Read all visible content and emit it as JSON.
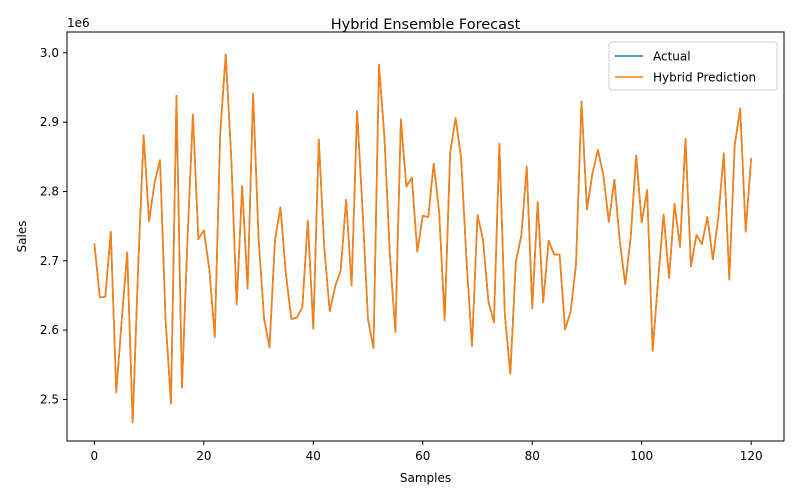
{
  "chart_data": {
    "type": "line",
    "title": "Hybrid Ensemble Forecast",
    "xlabel": "Samples",
    "ylabel": "Sales",
    "y_scale_label": "1e6",
    "xlim": [
      -5,
      126
    ],
    "ylim": [
      2440000,
      3030000
    ],
    "x_ticks": [
      0,
      20,
      40,
      60,
      80,
      100,
      120
    ],
    "x_tick_labels": [
      "0",
      "20",
      "40",
      "60",
      "80",
      "100",
      "120"
    ],
    "y_ticks": [
      2500000,
      2600000,
      2700000,
      2800000,
      2900000,
      3000000
    ],
    "y_tick_labels": [
      "2.5",
      "2.6",
      "2.7",
      "2.8",
      "2.9",
      "3.0"
    ],
    "grid": false,
    "legend_position": "top-right",
    "x": [
      0,
      1,
      2,
      3,
      4,
      5,
      6,
      7,
      8,
      9,
      10,
      11,
      12,
      13,
      14,
      15,
      16,
      17,
      18,
      19,
      20,
      21,
      22,
      23,
      24,
      25,
      26,
      27,
      28,
      29,
      30,
      31,
      32,
      33,
      34,
      35,
      36,
      37,
      38,
      39,
      40,
      41,
      42,
      43,
      44,
      45,
      46,
      47,
      48,
      49,
      50,
      51,
      52,
      53,
      54,
      55,
      56,
      57,
      58,
      59,
      60,
      61,
      62,
      63,
      64,
      65,
      66,
      67,
      68,
      69,
      70,
      71,
      72,
      73,
      74,
      75,
      76,
      77,
      78,
      79,
      80,
      81,
      82,
      83,
      84,
      85,
      86,
      87,
      88,
      89,
      90,
      91,
      92,
      93,
      94,
      95,
      96,
      97,
      98,
      99,
      100,
      101,
      102,
      103,
      104,
      105,
      106,
      107,
      108,
      109,
      110,
      111,
      112,
      113,
      114,
      115,
      116,
      117,
      118,
      119,
      120
    ],
    "series": [
      {
        "name": "Actual",
        "color": "#1f77b4",
        "values": [
          2725000,
          2647000,
          2648000,
          2742000,
          2510000,
          2615000,
          2712000,
          2467000,
          2690000,
          2881000,
          2757000,
          2813000,
          2845000,
          2616000,
          2494000,
          2938000,
          2517000,
          2728000,
          2911000,
          2731000,
          2744000,
          2688000,
          2590000,
          2885000,
          2998000,
          2850000,
          2637000,
          2808000,
          2660000,
          2941000,
          2733000,
          2617000,
          2575000,
          2730000,
          2777000,
          2680000,
          2616000,
          2618000,
          2633000,
          2758000,
          2602000,
          2875000,
          2720000,
          2627000,
          2663000,
          2686000,
          2788000,
          2664000,
          2916000,
          2773000,
          2615000,
          2574000,
          2983000,
          2878000,
          2707000,
          2597000,
          2904000,
          2807000,
          2820000,
          2713000,
          2765000,
          2763000,
          2840000,
          2770000,
          2614000,
          2855000,
          2906000,
          2848000,
          2700000,
          2577000,
          2766000,
          2731000,
          2641000,
          2611000,
          2869000,
          2621000,
          2537000,
          2698000,
          2736000,
          2836000,
          2631000,
          2785000,
          2640000,
          2729000,
          2709000,
          2709000,
          2601000,
          2626000,
          2695000,
          2930000,
          2774000,
          2826000,
          2860000,
          2823000,
          2756000,
          2817000,
          2728000,
          2666000,
          2735000,
          2852000,
          2755000,
          2802000,
          2570000,
          2672000,
          2767000,
          2675000,
          2782000,
          2720000,
          2876000,
          2692000,
          2737000,
          2724000,
          2763000,
          2702000,
          2763000,
          2855000,
          2673000,
          2867000,
          2920000,
          2742000,
          2848000
        ]
      },
      {
        "name": "Hybrid Prediction",
        "color": "#ff7f0e",
        "values": [
          2725000,
          2647000,
          2648000,
          2742000,
          2510000,
          2615000,
          2712000,
          2467000,
          2690000,
          2881000,
          2757000,
          2813000,
          2845000,
          2616000,
          2494000,
          2938000,
          2517000,
          2728000,
          2911000,
          2731000,
          2744000,
          2688000,
          2590000,
          2885000,
          2998000,
          2850000,
          2637000,
          2808000,
          2660000,
          2941000,
          2733000,
          2617000,
          2575000,
          2730000,
          2777000,
          2680000,
          2616000,
          2618000,
          2633000,
          2758000,
          2602000,
          2875000,
          2720000,
          2627000,
          2663000,
          2686000,
          2788000,
          2664000,
          2916000,
          2773000,
          2615000,
          2574000,
          2983000,
          2878000,
          2707000,
          2597000,
          2904000,
          2807000,
          2820000,
          2713000,
          2765000,
          2763000,
          2840000,
          2770000,
          2614000,
          2855000,
          2906000,
          2848000,
          2700000,
          2577000,
          2766000,
          2731000,
          2641000,
          2611000,
          2869000,
          2621000,
          2537000,
          2698000,
          2736000,
          2836000,
          2631000,
          2785000,
          2640000,
          2729000,
          2709000,
          2709000,
          2601000,
          2626000,
          2695000,
          2930000,
          2774000,
          2826000,
          2860000,
          2823000,
          2756000,
          2817000,
          2728000,
          2666000,
          2735000,
          2852000,
          2755000,
          2802000,
          2570000,
          2672000,
          2767000,
          2675000,
          2782000,
          2720000,
          2876000,
          2692000,
          2737000,
          2724000,
          2763000,
          2702000,
          2763000,
          2855000,
          2673000,
          2867000,
          2920000,
          2742000,
          2848000
        ]
      }
    ]
  }
}
